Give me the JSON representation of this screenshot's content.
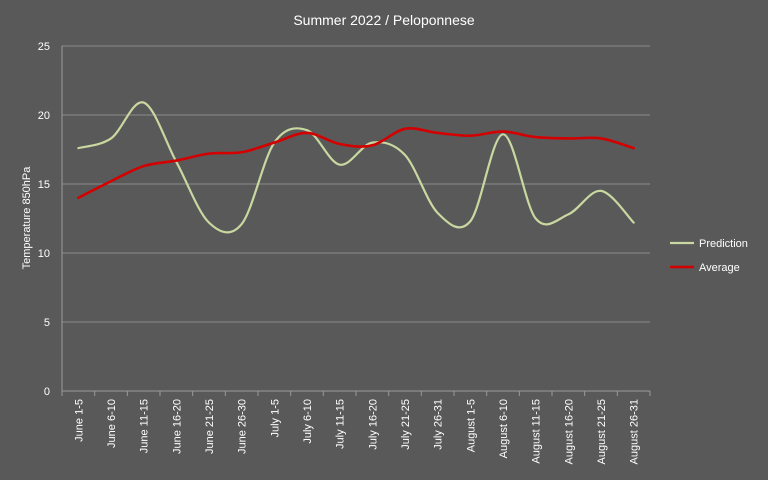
{
  "chart_data": {
    "type": "line",
    "title": "Summer 2022 / Peloponnese",
    "xlabel": "",
    "ylabel": "Temperature 850hPa",
    "ylim": [
      0,
      25
    ],
    "yticks": [
      "0",
      "5",
      "10",
      "15",
      "20",
      "25"
    ],
    "grid": true,
    "legend_position": "right",
    "categories": [
      "June 1-5",
      "June 6-10",
      "June 11-15",
      "June 16-20",
      "June 21-25",
      "June 26-30",
      "July 1-5",
      "July 6-10",
      "July 11-15",
      "July 16-20",
      "July 21-25",
      "July 26-31",
      "August 1-5",
      "August 6-10",
      "August 11-15",
      "August 16-20",
      "August 21-25",
      "August 26-31"
    ],
    "series": [
      {
        "name": "Prediction",
        "color": "#c9d7a0",
        "values": [
          17.6,
          18.3,
          20.9,
          16.6,
          12.2,
          12.1,
          18.0,
          18.9,
          16.4,
          18.0,
          17.1,
          12.9,
          12.3,
          18.6,
          12.5,
          12.8,
          14.5,
          12.2
        ]
      },
      {
        "name": "Average",
        "color": "#d40000",
        "values": [
          14.0,
          15.2,
          16.3,
          16.7,
          17.2,
          17.3,
          18.0,
          18.7,
          17.9,
          17.8,
          19.0,
          18.7,
          18.5,
          18.8,
          18.4,
          18.3,
          18.3,
          17.6
        ]
      }
    ]
  }
}
